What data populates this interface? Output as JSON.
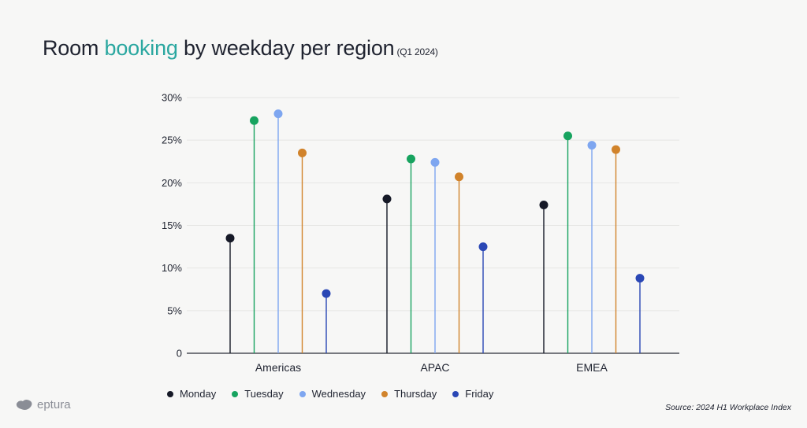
{
  "title": {
    "prefix": "Room ",
    "accent": "booking",
    "suffix": " by weekday per region",
    "subtitle": "(Q1 2024)"
  },
  "colors": {
    "text": "#1f2330",
    "accent": "#2aa7a0",
    "Monday": "#161927",
    "Tuesday": "#17a35f",
    "Wednesday": "#7ea6f0",
    "Thursday": "#d1832b",
    "Friday": "#2a47b5"
  },
  "chart_data": {
    "type": "lollipop",
    "categories": [
      "Americas",
      "APAC",
      "EMEA"
    ],
    "series": [
      {
        "name": "Monday",
        "values": [
          13.5,
          18.1,
          17.4
        ]
      },
      {
        "name": "Tuesday",
        "values": [
          27.3,
          22.8,
          25.5
        ]
      },
      {
        "name": "Wednesday",
        "values": [
          28.1,
          22.4,
          24.4
        ]
      },
      {
        "name": "Thursday",
        "values": [
          23.5,
          20.7,
          23.9
        ]
      },
      {
        "name": "Friday",
        "values": [
          7.0,
          12.5,
          8.8
        ]
      }
    ],
    "yticks": [
      "0",
      "5%",
      "10%",
      "15%",
      "20%",
      "25%",
      "30%"
    ],
    "ylim": [
      0,
      30
    ],
    "grid": true,
    "legend_position": "bottom"
  },
  "source": "Source: 2024 H1 Workplace Index",
  "logo": {
    "text": "eptura"
  }
}
